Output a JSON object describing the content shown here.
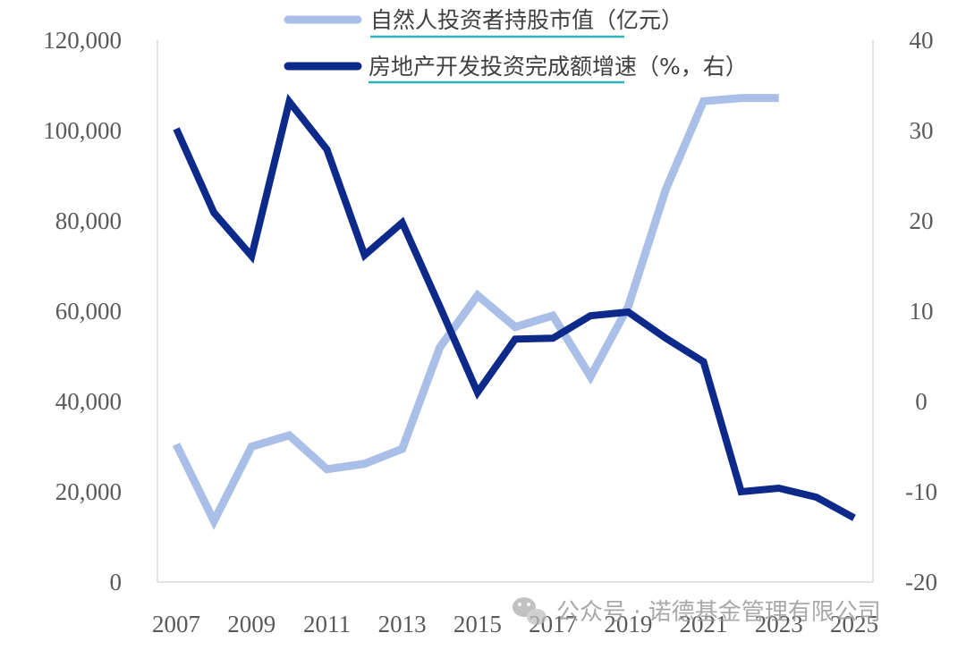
{
  "chart_data": {
    "type": "line",
    "x": [
      2007,
      2008,
      2009,
      2010,
      2011,
      2012,
      2013,
      2014,
      2015,
      2016,
      2017,
      2018,
      2019,
      2020,
      2021,
      2022,
      2023,
      2024,
      2025
    ],
    "x_tick_labels": [
      "2007",
      "2009",
      "2011",
      "2013",
      "2015",
      "2017",
      "2019",
      "2021",
      "2023",
      "2025"
    ],
    "series": [
      {
        "name": "自然人投资者持股市值（亿元）",
        "axis": "left",
        "color": "#a9bfe8",
        "values": [
          30500,
          13500,
          30000,
          32500,
          25000,
          26200,
          29500,
          52000,
          63500,
          56500,
          59000,
          45500,
          61000,
          87000,
          106500,
          107200,
          107200,
          null,
          null
        ]
      },
      {
        "name": "房地产开发投资完成额增速（%，右）",
        "axis": "right",
        "color": "#0d2a8a",
        "values": [
          30.2,
          20.9,
          16.1,
          33.2,
          27.9,
          16.2,
          19.8,
          10.5,
          1.0,
          6.9,
          7.0,
          9.5,
          9.9,
          7.0,
          4.4,
          -10.0,
          -9.6,
          -10.6,
          -12.9
        ]
      }
    ],
    "y_left": {
      "ylim": [
        0,
        120000
      ],
      "ticks": [
        "0",
        "20,000",
        "40,000",
        "60,000",
        "80,000",
        "100,000",
        "120,000"
      ]
    },
    "y_right": {
      "ylim": [
        -20,
        40
      ],
      "ticks": [
        "-20",
        "-10",
        "0",
        "10",
        "20",
        "30",
        "40"
      ]
    },
    "legend": {
      "placement": "top-center",
      "underline_color": "#2bb3c0"
    }
  },
  "watermark": {
    "text": "公众号 · 诺德基金管理有限公司",
    "icon": "wechat-icon"
  }
}
